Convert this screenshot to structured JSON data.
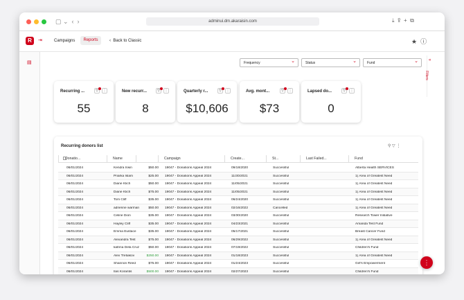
{
  "browser": {
    "url": "adminui.dm.akaraisin.com"
  },
  "nav": {
    "logo": "R",
    "items": [
      "Campaigns",
      "Reports"
    ],
    "back": "Back to Classic"
  },
  "filters": [
    "Frequency",
    "Status",
    "Fund"
  ],
  "side_tab": "Filters",
  "cards": [
    {
      "title": "Recurring ...",
      "value": "55"
    },
    {
      "title": "New recurr...",
      "value": "8"
    },
    {
      "title": "Quarterly r...",
      "value": "$10,606"
    },
    {
      "title": "Avg. mont...",
      "value": "$73"
    },
    {
      "title": "Lapsed do...",
      "value": "0"
    }
  ],
  "table": {
    "title": "Recurring donors list",
    "columns": [
      "Donatio...",
      "Name",
      "Campaign",
      "Create...",
      "St...",
      "Last Failed...",
      "Fund"
    ],
    "rows": [
      {
        "date": "06/01/2024",
        "name": "Kendra Irwin",
        "amount": "$50.00",
        "campaign": "19047 - Donations Appeal 2024",
        "created": "09/18/2020",
        "status": "Successful",
        "fund": "Alberta Health SERVICES"
      },
      {
        "date": "06/01/2024",
        "name": "Priarka Islam",
        "amount": "$25.00",
        "campaign": "19047 - Donations Appeal 2024",
        "created": "11/30/2021",
        "status": "Successful",
        "fund": "1) Area of Greatest Need"
      },
      {
        "date": "06/01/2024",
        "name": "Diane Klich",
        "amount": "$50.00",
        "campaign": "19047 - Donations Appeal 2024",
        "created": "11/05/2021",
        "status": "Successful",
        "fund": "1) Area of Greatest Need"
      },
      {
        "date": "06/01/2024",
        "name": "Diane Klich",
        "amount": "$75.00",
        "campaign": "19047 - Donations Appeal 2024",
        "created": "11/05/2021",
        "status": "Successful",
        "fund": "1) Area of Greatest Need"
      },
      {
        "date": "06/01/2024",
        "name": "Tom Cliff",
        "amount": "$35.00",
        "campaign": "19047 - Donations Appeal 2024",
        "created": "06/24/2020",
        "status": "Successful",
        "fund": "1) Area of Greatest Need"
      },
      {
        "date": "06/01/2024",
        "name": "adrienne warman",
        "amount": "$50.00",
        "campaign": "19047 - Donations Appeal 2024",
        "created": "02/16/2022",
        "status": "Cancelled",
        "fund": "1) Area of Greatest Need"
      },
      {
        "date": "06/01/2024",
        "name": "Celine Dion",
        "amount": "$35.00",
        "campaign": "19047 - Donations Appeal 2024",
        "created": "03/30/2020",
        "status": "Successful",
        "fund": "Research Tower Initiative"
      },
      {
        "date": "06/01/2024",
        "name": "Hayley Cliff",
        "amount": "$35.00",
        "campaign": "19047 - Donations Appeal 2024",
        "created": "04/23/2021",
        "status": "Successful",
        "fund": "Amanda Test Fund"
      },
      {
        "date": "06/01/2024",
        "name": "Emma Eustace",
        "amount": "$35.00",
        "campaign": "19047 - Donations Appeal 2024",
        "created": "05/17/2021",
        "status": "Successful",
        "fund": "Breast Cancer Fund"
      },
      {
        "date": "06/01/2024",
        "name": "Alexandra Test",
        "amount": "$75.00",
        "campaign": "19047 - Donations Appeal 2024",
        "created": "06/29/2022",
        "status": "Successful",
        "fund": "1) Area of Greatest Need"
      },
      {
        "date": "06/01/2024",
        "name": "katrina Dela Cruz",
        "amount": "$50.00",
        "campaign": "19047 - Donations Appeal 2024",
        "created": "07/19/2022",
        "status": "Successful",
        "fund": "Children's Fund"
      },
      {
        "date": "06/01/2024",
        "name": "Alex Tretiakov",
        "amount": "$250.00",
        "amount_color": "#2e9d3a",
        "campaign": "19047 - Donations Appeal 2024",
        "created": "01/18/2023",
        "status": "Successful",
        "fund": "1) Area of Greatest Need"
      },
      {
        "date": "06/01/2024",
        "name": "Shannon Reed",
        "amount": "$75.00",
        "campaign": "19047 - Donations Appeal 2024",
        "created": "01/24/2023",
        "status": "Successful",
        "fund": "Girl's Empowerment"
      },
      {
        "date": "06/01/2024",
        "name": "Ilas Korantis",
        "amount": "$500.00",
        "amount_color": "#2e9d3a",
        "campaign": "19047 - Donations Appeal 2024",
        "created": "02/27/2023",
        "status": "Successful",
        "fund": "Children's Fund"
      }
    ]
  }
}
